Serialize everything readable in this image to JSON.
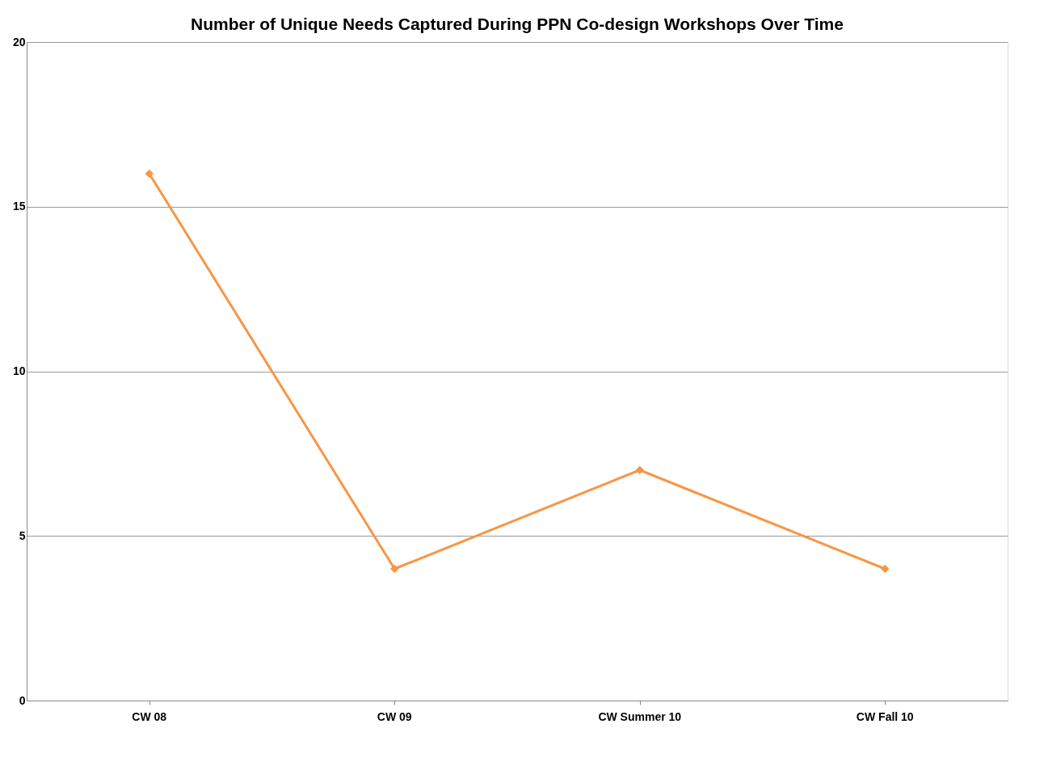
{
  "chart_data": {
    "type": "line",
    "title": "Number of Unique Needs Captured During PPN Co-design Workshops Over Time",
    "categories": [
      "CW  08",
      "CW 09",
      "CW Summer 10",
      "CW Fall 10"
    ],
    "series": [
      {
        "color": "#f79646",
        "values": [
          16,
          4,
          7,
          4
        ]
      }
    ],
    "ylim": [
      0,
      20
    ],
    "yticks": [
      0,
      5,
      10,
      15,
      20
    ],
    "grid": "y",
    "marker": "diamond",
    "line_style": "solid"
  }
}
